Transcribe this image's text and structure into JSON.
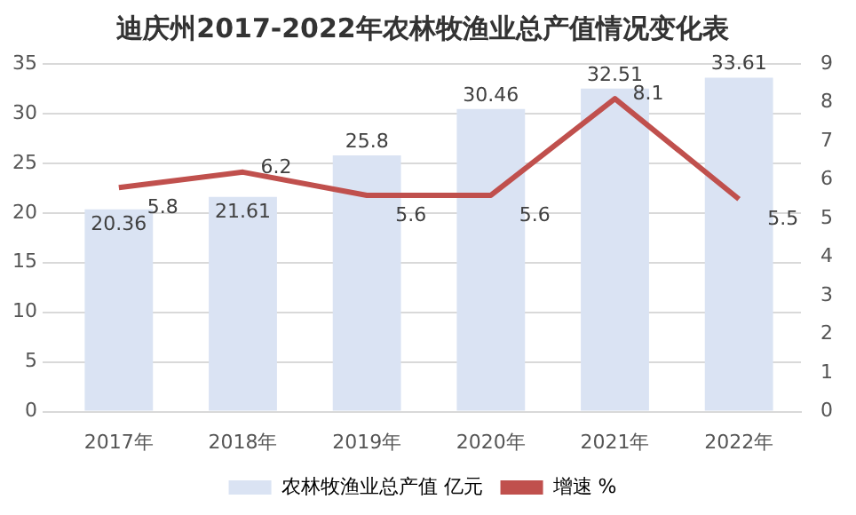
{
  "chart_data": {
    "type": "bar",
    "title": "迪庆州2017-2022年农林牧渔业总产值情况变化表",
    "categories": [
      "2017年",
      "2018年",
      "2019年",
      "2020年",
      "2021年",
      "2022年"
    ],
    "series": [
      {
        "name": "农林牧渔业总产值 亿元",
        "color": "#dae3f3",
        "values": [
          20.36,
          21.61,
          25.8,
          30.46,
          32.51,
          33.61
        ]
      },
      {
        "name": "增速 %",
        "type": "line",
        "axis": "y2",
        "color": "#c0504d",
        "values": [
          5.8,
          6.2,
          5.6,
          5.6,
          8.1,
          5.5
        ]
      }
    ],
    "ylim": [
      0,
      35
    ],
    "yticks": [
      0,
      5,
      10,
      15,
      20,
      25,
      30,
      35
    ],
    "y2lim": [
      0,
      9
    ],
    "y2ticks": [
      0,
      1,
      2,
      3,
      4,
      5,
      6,
      7,
      8,
      9
    ],
    "grid": "y",
    "legend": "bottom",
    "data_labels": true,
    "marker": "none"
  }
}
